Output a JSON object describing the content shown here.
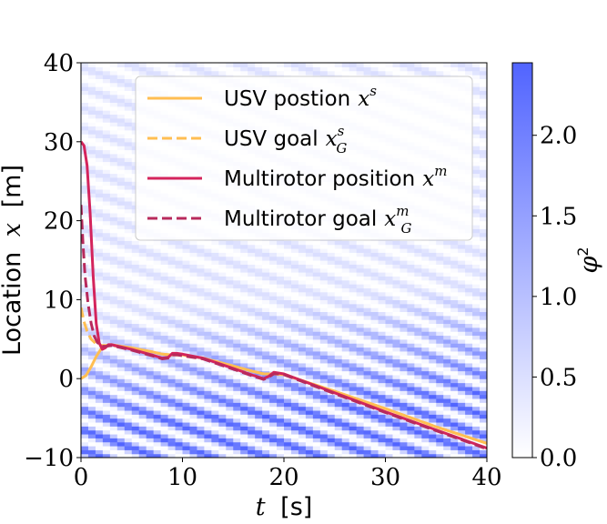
{
  "chart_data": {
    "type": "line",
    "xlabel": {
      "var": "t",
      "unit": "[s]"
    },
    "ylabel": {
      "text": "Location",
      "var": "x",
      "unit": "[m]"
    },
    "xlim": [
      0,
      40
    ],
    "ylim": [
      -10,
      40
    ],
    "x_ticks": [
      {
        "value": 0,
        "label": "0"
      },
      {
        "value": 10,
        "label": "10"
      },
      {
        "value": 20,
        "label": "20"
      },
      {
        "value": 30,
        "label": "30"
      },
      {
        "value": 40,
        "label": "40"
      }
    ],
    "y_ticks": [
      {
        "value": -10,
        "label": "−10"
      },
      {
        "value": 0,
        "label": "0"
      },
      {
        "value": 10,
        "label": "10"
      },
      {
        "value": 20,
        "label": "20"
      },
      {
        "value": 30,
        "label": "30"
      },
      {
        "value": 40,
        "label": "40"
      }
    ],
    "grid": false,
    "legend": {
      "placement": "top-right",
      "entries": [
        {
          "text": "USV postion",
          "math": "x",
          "sup": "s",
          "sub": ""
        },
        {
          "text": "USV goal",
          "math": "x",
          "sup": "s",
          "sub": "G"
        },
        {
          "text": "Multirotor position",
          "math": "x",
          "sup": "m",
          "sub": ""
        },
        {
          "text": "Multirotor goal",
          "math": "x",
          "sup": "m",
          "sub": "G"
        }
      ]
    },
    "series": [
      {
        "color": "#ffbe52",
        "dash": "solid",
        "x": [
          0,
          0.5,
          1,
          1.5,
          2,
          2.5,
          3,
          5,
          7,
          8,
          9,
          10,
          12,
          15,
          17,
          18,
          18.5,
          19,
          20,
          25,
          30,
          35,
          40
        ],
        "y": [
          0,
          0.4,
          1.5,
          2.8,
          3.8,
          4.2,
          4.3,
          3.9,
          3.4,
          3.1,
          3.0,
          3.0,
          2.6,
          1.6,
          0.9,
          0.6,
          0.6,
          0.6,
          0.5,
          -1.6,
          -3.8,
          -6.1,
          -8.2
        ]
      },
      {
        "color": "#ffbe52",
        "dash": "dashed",
        "x": [
          0,
          0.3,
          0.6,
          1,
          1.5,
          2,
          2.5,
          3,
          5,
          7,
          8,
          9,
          10,
          12,
          15,
          17,
          18,
          19,
          20,
          25,
          30,
          35,
          40
        ],
        "y": [
          9,
          7.2,
          6,
          5,
          4.4,
          4.2,
          4.2,
          4.2,
          3.9,
          3.4,
          3.1,
          3.0,
          3.0,
          2.6,
          1.6,
          0.9,
          0.6,
          0.6,
          0.5,
          -1.6,
          -3.8,
          -6.1,
          -8.2
        ]
      },
      {
        "color": "#d4245c",
        "dash": "solid",
        "x": [
          0,
          0.3,
          0.6,
          0.9,
          1.2,
          1.5,
          1.8,
          2.1,
          2.4,
          2.7,
          3,
          5,
          7,
          8,
          8.6,
          9,
          9.5,
          10,
          12,
          15,
          17,
          18,
          18.5,
          19,
          19.5,
          20,
          25,
          30,
          35,
          40
        ],
        "y": [
          30,
          29.5,
          27,
          21,
          13,
          7,
          4.5,
          3.7,
          3.9,
          4.3,
          4.3,
          3.7,
          3.0,
          2.6,
          2.7,
          3.2,
          3.2,
          3.1,
          2.6,
          1.3,
          0.4,
          0.0,
          0.3,
          0.8,
          0.7,
          0.6,
          -1.8,
          -4.2,
          -6.5,
          -8.8
        ]
      },
      {
        "color": "#b82a5c",
        "dash": "dashed",
        "x": [
          0,
          0.2,
          0.4,
          0.7,
          1,
          1.3,
          1.6,
          2,
          2.5,
          3,
          5,
          7,
          8,
          8.6,
          9,
          9.5,
          10,
          12,
          15,
          17,
          18,
          18.5,
          19,
          19.5,
          20,
          25,
          30,
          35,
          40
        ],
        "y": [
          22,
          17,
          13,
          9.5,
          7,
          5.4,
          4.6,
          4.1,
          4.1,
          4.2,
          3.6,
          2.9,
          2.5,
          2.6,
          3.0,
          3.0,
          2.9,
          2.5,
          1.2,
          0.3,
          -0.1,
          0.2,
          0.6,
          0.6,
          0.5,
          -1.9,
          -4.3,
          -6.6,
          -8.9
        ]
      }
    ],
    "background": {
      "type": "heatmap",
      "quantity": "φ²",
      "colormap": [
        "#ffffff",
        "#5164ff"
      ],
      "range": [
        0.0,
        2.45
      ],
      "stripe_slope": -0.47,
      "stripe_period": 2.55
    },
    "colorbar": {
      "label": "φ²",
      "label_var": "φ",
      "label_sup": "2",
      "range": [
        0.0,
        2.45
      ],
      "ticks": [
        {
          "value": 0.0,
          "label": "0.0"
        },
        {
          "value": 0.5,
          "label": "0.5"
        },
        {
          "value": 1.0,
          "label": "1.0"
        },
        {
          "value": 1.5,
          "label": "1.5"
        },
        {
          "value": 2.0,
          "label": "2.0"
        }
      ]
    }
  }
}
